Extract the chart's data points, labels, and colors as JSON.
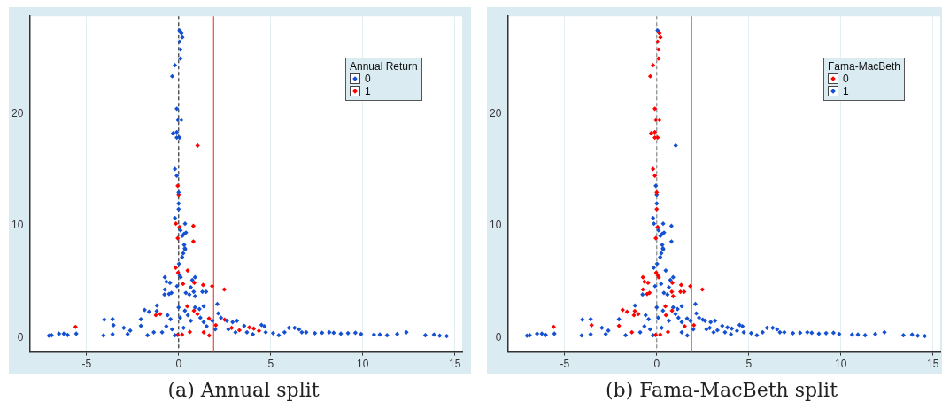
{
  "chart_data": [
    {
      "type": "scatter",
      "title": "(a) Annual split",
      "legend_title": "Annual Return",
      "legend": "top right",
      "grid": "x",
      "marker": "diamond",
      "xlim": [
        -8.1,
        15.4
      ],
      "ylim": [
        -1.3,
        28.8
      ],
      "xticks": [
        -5,
        0,
        5,
        10,
        15
      ],
      "yticks": [
        0,
        10,
        20
      ],
      "ref_lines": [
        {
          "axis": "x",
          "value": 0,
          "color": "#333333",
          "line_style": "dashed"
        },
        {
          "axis": "x",
          "value": 1.9,
          "color": "#e84a4a"
        }
      ],
      "series": [
        {
          "name": "0",
          "color": "#1450d2",
          "x": [
            0.05,
            0.15,
            0.2,
            0.05,
            0.1,
            0.1,
            -0.2,
            -0.35,
            -0.1,
            -0.05,
            0.15,
            -0.1,
            -0.3,
            -0.1,
            0.05,
            -0.2,
            -0.1,
            0,
            0,
            0,
            -0.2,
            0.35,
            0.1,
            0.3,
            0.2,
            0.4,
            0.3,
            0.35,
            -7.05,
            -6.9,
            -6.5,
            -6.24,
            -6.03,
            -5.56,
            -4.08,
            -4.04,
            -3.59,
            -3.54,
            -3.59,
            -2.98,
            -2.63,
            -2.77,
            -2.05,
            -2.05,
            -1.85,
            -1.61,
            -1.19,
            -1.69,
            -1.35,
            -1.18,
            -0.9,
            -0.75,
            -0.67,
            -0.47,
            -0.75,
            -0.52,
            -0.39,
            -0.77,
            -0.6,
            -0.44,
            -0.67,
            -0.36,
            -0.2,
            0.02,
            0.06,
            0.11,
            -0.09,
            0,
            0.08,
            0.27,
            0.34,
            0.25,
            0.19,
            0.74,
            0.89,
            0.66,
            0.39,
            0.58,
            0.82,
            0.89,
            1.29,
            1.49,
            0.34,
            0.5,
            0.66,
            0.89,
            1.13,
            1.36,
            1.18,
            1.36,
            1.52,
            1.83,
            1.99,
            2.1,
            2.15,
            2.3,
            2.62,
            2.93,
            3.17,
            2.7,
            3.09,
            3.56,
            3.71,
            4.03,
            4.5,
            4.66,
            4.73,
            5.13,
            5.44,
            5.75,
            5.99,
            6.3,
            6.54,
            6.69,
            6.93,
            7.4,
            7.79,
            8.18,
            8.42,
            8.81,
            9.2,
            9.6,
            9.91,
            10.61,
            10.93,
            11.32,
            11.87,
            12.37,
            13.4,
            13.87,
            14.18,
            14.56
          ],
          "values": [
            27.5,
            27.3,
            26.9,
            26.5,
            25.8,
            25.0,
            24.4,
            23.4,
            20.5,
            19.5,
            19.5,
            18.4,
            18.3,
            17.9,
            17.9,
            15.1,
            14.5,
            13.0,
            12.0,
            11.5,
            10.7,
            10.2,
            9.6,
            9.3,
            9.1,
            9.4,
            8.3,
            7.9,
            0.16,
            0.2,
            0.34,
            0.34,
            0.23,
            0.34,
            0.18,
            1.6,
            1.64,
            1.1,
            0.29,
            0.86,
            0.62,
            0.31,
            1.64,
            1.04,
            2.47,
            2.3,
            2.37,
            0.2,
            0.47,
            2.86,
            0.47,
            5.4,
            5.0,
            4.9,
            4.3,
            3.9,
            4.0,
            3.85,
            2.0,
            1.64,
            1.0,
            0.73,
            0.2,
            6.6,
            5.55,
            5.4,
            4.6,
            2.7,
            1.77,
            0.86,
            8.0,
            7.55,
            7.2,
            5.15,
            5.4,
            4.5,
            4.0,
            3.85,
            4.1,
            3.7,
            4.1,
            4.1,
            2.4,
            2.0,
            1.5,
            2.7,
            2.55,
            2.8,
            1.77,
            1.38,
            1.0,
            1.5,
            0.73,
            3.0,
            2.16,
            1.77,
            1.5,
            1.38,
            1.5,
            0.73,
            0.47,
            1.04,
            0.47,
            0.29,
            1.12,
            1.0,
            0.47,
            0.39,
            0.2,
            0.47,
            0.86,
            0.86,
            0.73,
            0.47,
            0.47,
            0.39,
            0.42,
            0.47,
            0.42,
            0.34,
            0.39,
            0.42,
            0.31,
            0.26,
            0.26,
            0.2,
            0.31,
            0.47,
            0.2,
            0.26,
            0.16,
            0.13
          ]
        },
        {
          "name": "1",
          "color": "#ff0000",
          "x": [
            1.03,
            -0.05,
            0,
            -0.15,
            0.8,
            0.05,
            -0.05,
            0.8,
            -0.16,
            -0.03,
            0.49,
            0.24,
            0.85,
            1.33,
            1.82,
            2.48,
            -1.24,
            -1.0,
            0.83,
            0.47,
            1.02,
            1.65,
            2.02,
            -5.6,
            -0.06,
            0.19,
            0.61,
            1.36,
            1.66,
            3.3,
            3.84,
            4.08,
            4.36,
            2.88,
            2.5
          ],
          "values": [
            17.2,
            13.6,
            12.8,
            10.2,
            10.0,
            9.9,
            8.9,
            8.6,
            6.25,
            5.8,
            6.0,
            4.8,
            4.9,
            4.7,
            4.6,
            4.3,
            2.0,
            2.1,
            2.4,
            2.8,
            2.1,
            1.7,
            1.1,
            0.95,
            0.23,
            0.26,
            0.5,
            0.47,
            0.18,
            0.65,
            0.9,
            0.8,
            0.6,
            0.86,
            1.6
          ]
        }
      ]
    },
    {
      "type": "scatter",
      "title": "(b) Fama-MacBeth split",
      "legend_title": "Fama-MacBeth",
      "legend": "top right",
      "grid": "x",
      "marker": "diamond",
      "xlim": [
        -8.1,
        15.4
      ],
      "ylim": [
        -1.3,
        28.8
      ],
      "xticks": [
        -5,
        0,
        5,
        10,
        15
      ],
      "yticks": [
        0,
        10,
        20
      ],
      "ref_lines": [
        {
          "axis": "x",
          "value": 0,
          "color": "#888888",
          "line_style": "dashed"
        },
        {
          "axis": "x",
          "value": 1.9,
          "color": "#ff5a5a"
        }
      ],
      "series": [
        {
          "name": "0",
          "color": "#ff0000",
          "x": [
            0.15,
            0.2,
            0.05,
            0.1,
            0.1,
            -0.2,
            -0.35,
            -0.1,
            -0.05,
            0.15,
            -0.1,
            -0.3,
            -0.1,
            0.05,
            -0.2,
            -0.1,
            0,
            0,
            0.05,
            -0.05,
            -0.75,
            -0.67,
            -0.47,
            -0.75,
            -0.52,
            -0.39,
            0.06,
            0.11,
            0.89,
            0.82,
            1.29,
            1.49,
            -1.85,
            -1.61,
            -2.05,
            -1.35,
            -3.54,
            -1.19,
            0.5,
            1.52,
            -0.03,
            0.85,
            1.33,
            1.82,
            2.48,
            -1.24,
            -1.0,
            0.83,
            0.47,
            2.02,
            -5.6,
            -0.06,
            0.19,
            0.61
          ],
          "values": [
            27.3,
            26.9,
            26.5,
            25.8,
            25.0,
            24.4,
            23.4,
            20.5,
            19.5,
            19.5,
            18.4,
            18.3,
            17.9,
            17.9,
            15.1,
            14.5,
            13.0,
            11.5,
            9.9,
            8.9,
            5.4,
            5.0,
            4.9,
            4.3,
            3.9,
            4.0,
            5.55,
            5.4,
            3.7,
            4.1,
            4.1,
            4.1,
            2.47,
            2.3,
            1.04,
            0.47,
            1.1,
            2.37,
            2.0,
            1.0,
            5.8,
            4.9,
            4.7,
            4.6,
            4.3,
            2.0,
            2.1,
            2.4,
            2.8,
            1.1,
            0.95,
            0.23,
            0.26,
            0.5
          ]
        },
        {
          "name": "1",
          "color": "#1450d2",
          "x": [
            0.05,
            1.03,
            -0.05,
            0,
            0,
            -0.2,
            0.35,
            -0.15,
            0.8,
            0.1,
            0.3,
            0.2,
            0.4,
            0.8,
            0.3,
            0.35,
            -7.05,
            -6.9,
            -6.5,
            -6.24,
            -6.03,
            -5.56,
            -4.08,
            -4.04,
            -3.59,
            -3.59,
            -2.98,
            -2.63,
            -2.77,
            -2.05,
            -1.69,
            -1.18,
            -0.9,
            -0.77,
            -0.6,
            -0.44,
            -0.67,
            -0.36,
            -0.2,
            0.02,
            -0.09,
            0,
            0.08,
            0.27,
            0.34,
            0.25,
            0.19,
            0.74,
            0.89,
            0.66,
            0.39,
            0.58,
            0.34,
            0.66,
            0.89,
            1.13,
            1.36,
            1.18,
            1.36,
            1.83,
            1.99,
            2.1,
            2.15,
            2.3,
            2.62,
            2.93,
            3.17,
            2.7,
            3.09,
            3.56,
            3.71,
            4.03,
            4.5,
            4.66,
            4.73,
            5.13,
            5.44,
            5.75,
            5.99,
            6.3,
            6.54,
            6.69,
            6.93,
            7.4,
            7.79,
            8.18,
            8.42,
            8.81,
            9.2,
            9.6,
            9.91,
            10.61,
            10.93,
            11.32,
            11.87,
            12.37,
            13.4,
            13.87,
            14.18,
            14.56,
            -0.16,
            0.49,
            0.24,
            1.02,
            1.65,
            1.36,
            1.66,
            3.3,
            3.84,
            4.08,
            4.36,
            2.88,
            2.5
          ],
          "values": [
            27.5,
            17.2,
            13.6,
            12.8,
            12.0,
            10.7,
            10.2,
            10.2,
            10.0,
            9.6,
            9.3,
            9.1,
            9.4,
            8.6,
            8.3,
            7.9,
            0.16,
            0.2,
            0.34,
            0.34,
            0.23,
            0.34,
            0.18,
            1.6,
            1.64,
            0.29,
            0.86,
            0.62,
            0.31,
            1.64,
            0.2,
            2.86,
            0.47,
            3.85,
            2.0,
            1.64,
            1.0,
            0.73,
            0.2,
            6.6,
            4.6,
            2.7,
            1.77,
            0.86,
            8.0,
            7.55,
            7.2,
            5.15,
            5.4,
            4.5,
            4.0,
            3.85,
            2.4,
            1.5,
            2.7,
            2.55,
            2.8,
            1.77,
            1.38,
            1.5,
            0.73,
            3.0,
            2.16,
            1.77,
            1.5,
            1.38,
            1.5,
            0.73,
            0.47,
            1.04,
            0.47,
            0.29,
            1.12,
            1.0,
            0.47,
            0.39,
            0.2,
            0.47,
            0.86,
            0.86,
            0.73,
            0.47,
            0.47,
            0.39,
            0.42,
            0.47,
            0.42,
            0.34,
            0.39,
            0.42,
            0.31,
            0.26,
            0.26,
            0.2,
            0.31,
            0.47,
            0.2,
            0.26,
            0.16,
            0.13,
            6.25,
            6.0,
            4.8,
            2.1,
            1.7,
            0.47,
            0.18,
            0.65,
            0.9,
            0.8,
            0.6,
            0.86,
            1.6
          ]
        }
      ]
    }
  ]
}
